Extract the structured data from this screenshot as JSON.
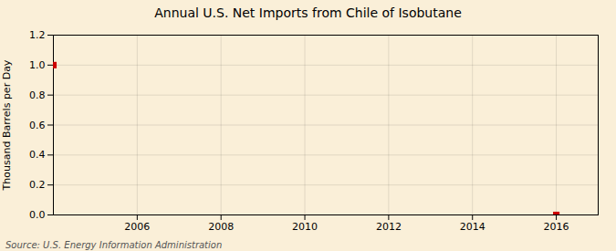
{
  "chart_data": {
    "type": "scatter",
    "title": "Annual U.S. Net Imports from Chile of Isobutane",
    "ylabel": "Thousand Barrels per Day",
    "annotations": [
      "Source: U.S. Energy Information Administration"
    ],
    "x": [
      2004,
      2016
    ],
    "values": [
      1.0,
      0.0
    ],
    "color": "#cc0000",
    "marker": "square",
    "xlim": [
      2004,
      2017
    ],
    "xticks": [
      2006,
      2008,
      2010,
      2012,
      2014,
      2016
    ],
    "ylim": [
      0.0,
      1.2
    ],
    "yticks": [
      {
        "value": 0.0,
        "label": "0.0"
      },
      0.2,
      0.4,
      0.6,
      0.8,
      {
        "value": 1.0,
        "label": "1.0"
      },
      1.2
    ],
    "grid": true
  }
}
